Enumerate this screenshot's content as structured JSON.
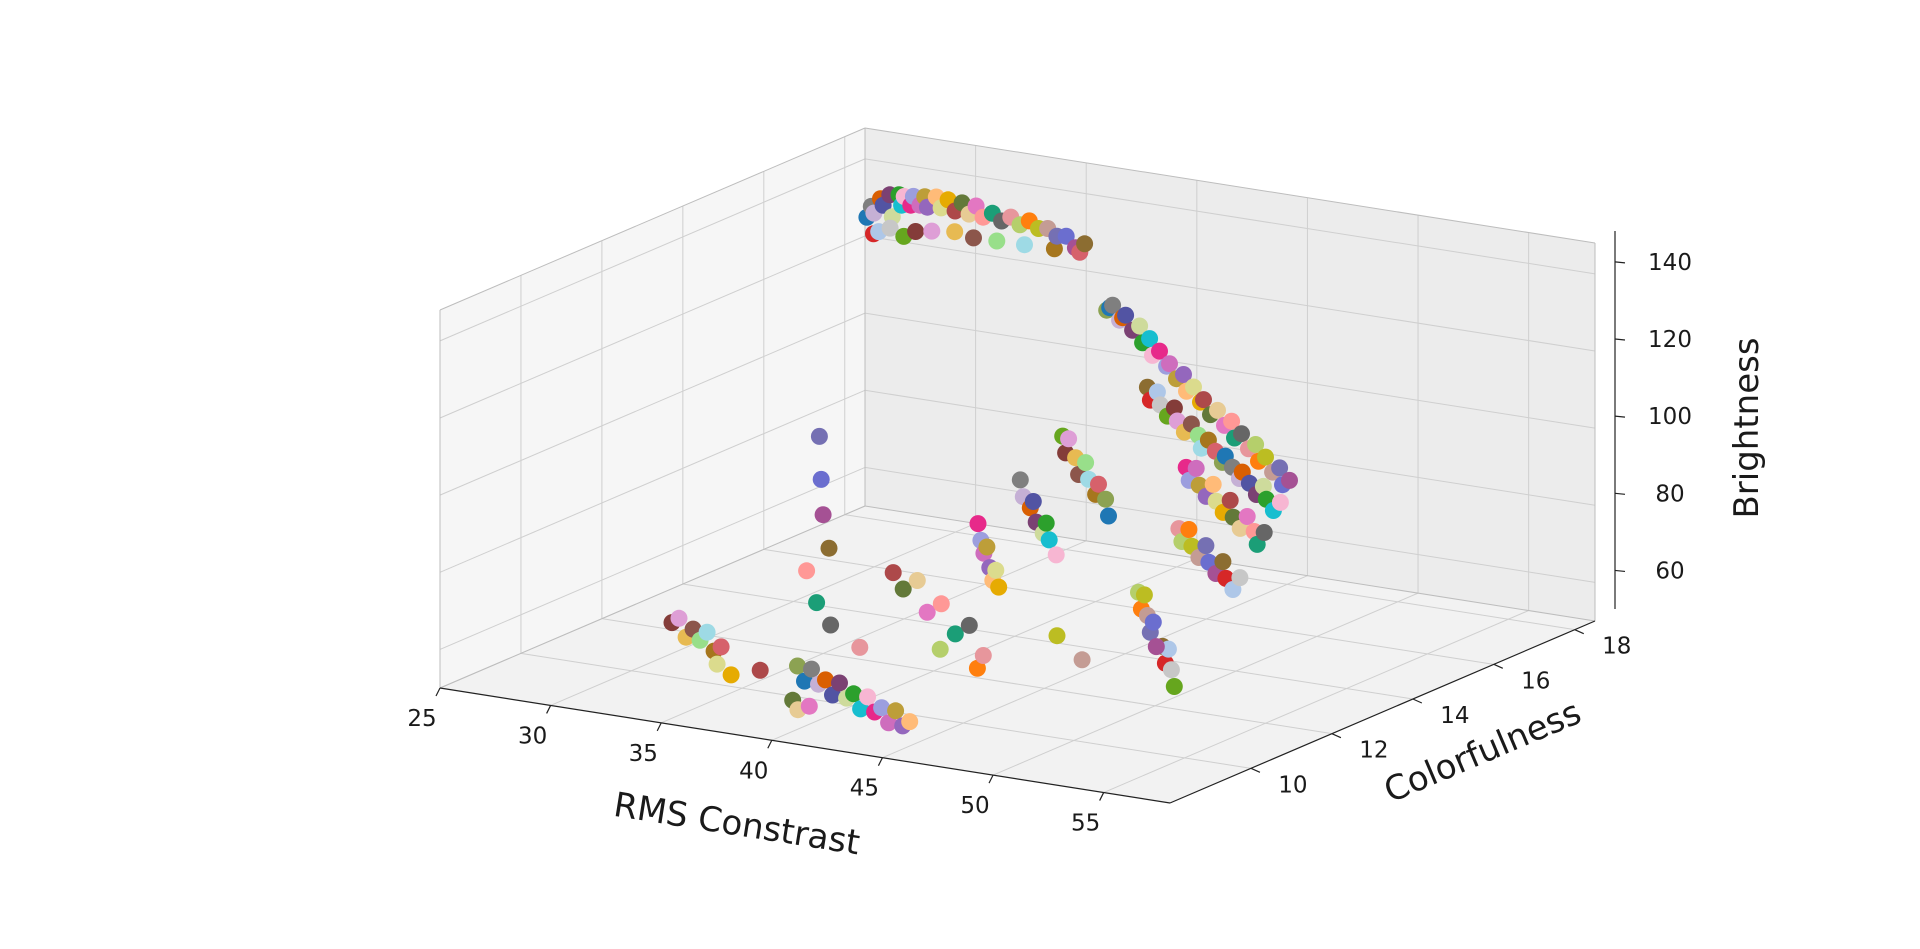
{
  "chart_data": {
    "type": "scatter",
    "projection": "3d",
    "title": "",
    "xlabel": "RMS Constrast",
    "ylabel": "Colorfulness",
    "zlabel": "Brightness",
    "xlim": [
      25,
      58
    ],
    "ylim": [
      8,
      18.5
    ],
    "zlim": [
      50,
      148
    ],
    "xticks": [
      "25",
      "30",
      "35",
      "40",
      "45",
      "50",
      "55"
    ],
    "yticks": [
      "10",
      "12",
      "14",
      "16",
      "18"
    ],
    "zticks": [
      "60",
      "80",
      "100",
      "120",
      "140"
    ],
    "grid": true,
    "legend": "none",
    "palette": [
      "#1f77b4",
      "#ff7f0e",
      "#2ca02c",
      "#d62728",
      "#9467bd",
      "#8c564b",
      "#e377c2",
      "#7f7f7f",
      "#bcbd22",
      "#17becf",
      "#aec7e8",
      "#ffbb78",
      "#98df8a",
      "#ff9896",
      "#c5b0d5",
      "#c49c94",
      "#f7b6d2",
      "#c7c7c7",
      "#dbdb8d",
      "#9edae5",
      "#1b9e77",
      "#d95f02",
      "#7570b3",
      "#e7298a",
      "#66a61e",
      "#e6ab02",
      "#a6761d",
      "#666666",
      "#5254a3",
      "#6b6ecf",
      "#9c9ede",
      "#843c39",
      "#ad494a",
      "#d6616b",
      "#e7969c",
      "#7b4173",
      "#a55194",
      "#ce6dbd",
      "#de9ed6",
      "#637939",
      "#8ca252",
      "#b5cf6b",
      "#cedb9c",
      "#8c6d31",
      "#bd9e39",
      "#e7ba52",
      "#e7cb94"
    ],
    "points": [
      [
        26.0,
        18.0,
        128
      ],
      [
        26.2,
        18.0,
        131
      ],
      [
        26.5,
        17.9,
        130
      ],
      [
        26.8,
        17.9,
        134
      ],
      [
        27.1,
        17.8,
        133
      ],
      [
        27.4,
        17.8,
        136
      ],
      [
        27.7,
        17.7,
        131
      ],
      [
        28.0,
        17.7,
        137
      ],
      [
        28.3,
        17.6,
        135
      ],
      [
        28.6,
        17.5,
        138
      ],
      [
        28.9,
        17.5,
        136
      ],
      [
        29.2,
        17.4,
        139
      ],
      [
        29.5,
        17.4,
        137
      ],
      [
        29.9,
        17.3,
        140
      ],
      [
        30.2,
        17.2,
        138
      ],
      [
        30.6,
        17.2,
        141
      ],
      [
        31.0,
        17.1,
        139
      ],
      [
        31.5,
        17.0,
        142
      ],
      [
        32.0,
        16.9,
        140
      ],
      [
        32.5,
        16.8,
        143
      ],
      [
        33.0,
        16.7,
        141
      ],
      [
        33.5,
        16.6,
        144
      ],
      [
        34.0,
        16.5,
        142
      ],
      [
        34.6,
        16.4,
        144
      ],
      [
        35.2,
        16.3,
        143
      ],
      [
        35.8,
        16.2,
        145
      ],
      [
        36.4,
        16.1,
        144
      ],
      [
        37.0,
        16.0,
        146
      ],
      [
        37.6,
        15.9,
        145
      ],
      [
        38.2,
        15.8,
        146
      ],
      [
        38.8,
        15.7,
        145
      ],
      [
        39.4,
        15.6,
        146
      ],
      [
        40.0,
        15.5,
        144
      ],
      [
        40.6,
        15.4,
        146
      ],
      [
        26.3,
        18.0,
        124
      ],
      [
        26.9,
        17.8,
        126
      ],
      [
        27.6,
        17.7,
        128
      ],
      [
        28.4,
        17.6,
        127
      ],
      [
        29.3,
        17.4,
        130
      ],
      [
        30.4,
        17.2,
        132
      ],
      [
        31.8,
        17.0,
        134
      ],
      [
        33.2,
        16.7,
        135
      ],
      [
        34.8,
        16.4,
        137
      ],
      [
        36.6,
        16.1,
        139
      ],
      [
        38.5,
        15.8,
        141
      ],
      [
        40.2,
        15.5,
        143
      ],
      [
        40.5,
        16.0,
        126
      ],
      [
        41.0,
        15.8,
        128
      ],
      [
        41.5,
        15.6,
        130
      ],
      [
        42.0,
        15.5,
        127
      ],
      [
        42.5,
        15.3,
        129
      ],
      [
        43.0,
        15.1,
        131
      ],
      [
        43.5,
        15.0,
        128
      ],
      [
        44.0,
        14.9,
        130
      ],
      [
        44.5,
        14.7,
        127
      ],
      [
        45.0,
        14.6,
        129
      ],
      [
        45.5,
        14.4,
        126
      ],
      [
        46.0,
        14.3,
        128
      ],
      [
        46.5,
        14.2,
        125
      ],
      [
        47.0,
        14.0,
        127
      ],
      [
        47.5,
        13.9,
        124
      ],
      [
        48.0,
        13.8,
        126
      ],
      [
        48.5,
        13.6,
        123
      ],
      [
        49.0,
        13.5,
        125
      ],
      [
        49.5,
        13.4,
        122
      ],
      [
        50.0,
        13.2,
        124
      ],
      [
        50.5,
        13.1,
        121
      ],
      [
        51.0,
        13.0,
        123
      ],
      [
        51.5,
        12.9,
        120
      ],
      [
        52.0,
        12.8,
        122
      ],
      [
        52.5,
        12.6,
        119
      ],
      [
        53.0,
        12.5,
        121
      ],
      [
        53.5,
        12.4,
        118
      ],
      [
        54.0,
        12.3,
        120
      ],
      [
        54.5,
        12.1,
        117
      ],
      [
        55.0,
        12.0,
        119
      ],
      [
        55.5,
        11.9,
        116
      ],
      [
        56.0,
        11.8,
        118
      ],
      [
        56.5,
        11.6,
        115
      ],
      [
        57.0,
        11.5,
        117
      ],
      [
        46.0,
        14.0,
        120
      ],
      [
        46.5,
        13.8,
        118
      ],
      [
        47.0,
        13.7,
        121
      ],
      [
        47.5,
        13.5,
        119
      ],
      [
        48.0,
        13.4,
        117
      ],
      [
        48.5,
        13.3,
        120
      ],
      [
        49.0,
        13.1,
        118
      ],
      [
        49.5,
        13.0,
        116
      ],
      [
        50.0,
        12.9,
        119
      ],
      [
        50.5,
        12.8,
        117
      ],
      [
        51.0,
        12.6,
        115
      ],
      [
        51.5,
        12.5,
        118
      ],
      [
        52.0,
        12.4,
        116
      ],
      [
        52.5,
        12.3,
        114
      ],
      [
        53.0,
        12.1,
        117
      ],
      [
        53.5,
        12.0,
        115
      ],
      [
        54.0,
        11.9,
        113
      ],
      [
        54.5,
        11.7,
        116
      ],
      [
        55.0,
        11.6,
        114
      ],
      [
        55.5,
        11.5,
        112
      ],
      [
        56.0,
        11.4,
        115
      ],
      [
        56.5,
        11.2,
        113
      ],
      [
        57.0,
        11.1,
        111
      ],
      [
        57.5,
        11.0,
        114
      ],
      [
        50.5,
        12.5,
        110
      ],
      [
        51.0,
        12.3,
        108
      ],
      [
        51.5,
        12.2,
        112
      ],
      [
        52.0,
        12.0,
        109
      ],
      [
        52.5,
        11.9,
        107
      ],
      [
        53.0,
        11.8,
        111
      ],
      [
        53.5,
        11.6,
        108
      ],
      [
        54.0,
        11.5,
        106
      ],
      [
        54.5,
        11.4,
        110
      ],
      [
        55.0,
        11.2,
        107
      ],
      [
        55.5,
        11.1,
        105
      ],
      [
        56.0,
        11.0,
        109
      ],
      [
        56.5,
        10.9,
        106
      ],
      [
        57.0,
        10.7,
        104
      ],
      [
        57.5,
        10.6,
        108
      ],
      [
        52.0,
        11.5,
        100
      ],
      [
        52.5,
        11.3,
        98
      ],
      [
        53.0,
        11.2,
        102
      ],
      [
        53.5,
        11.0,
        99
      ],
      [
        54.0,
        10.9,
        97
      ],
      [
        54.5,
        10.8,
        101
      ],
      [
        55.0,
        10.6,
        98
      ],
      [
        55.5,
        10.5,
        96
      ],
      [
        56.0,
        10.4,
        100
      ],
      [
        56.5,
        10.2,
        97
      ],
      [
        57.0,
        10.1,
        95
      ],
      [
        57.5,
        10.0,
        99
      ],
      [
        44.0,
        13.0,
        110
      ],
      [
        44.5,
        12.8,
        107
      ],
      [
        45.0,
        12.6,
        112
      ],
      [
        45.5,
        12.5,
        108
      ],
      [
        46.0,
        12.3,
        105
      ],
      [
        46.5,
        12.2,
        109
      ],
      [
        47.0,
        12.0,
        106
      ],
      [
        47.5,
        11.9,
        103
      ],
      [
        48.0,
        11.7,
        107
      ],
      [
        48.5,
        11.6,
        104
      ],
      [
        49.0,
        11.4,
        101
      ],
      [
        43.0,
        12.5,
        100
      ],
      [
        43.5,
        12.3,
        97
      ],
      [
        44.0,
        12.2,
        95
      ],
      [
        44.5,
        12.0,
        98
      ],
      [
        45.0,
        11.8,
        94
      ],
      [
        45.5,
        11.7,
        92
      ],
      [
        46.0,
        11.5,
        96
      ],
      [
        46.5,
        11.3,
        93
      ],
      [
        47.0,
        11.2,
        90
      ],
      [
        42.0,
        12.0,
        90
      ],
      [
        42.5,
        11.8,
        87
      ],
      [
        43.0,
        11.6,
        85
      ],
      [
        43.5,
        11.4,
        88
      ],
      [
        44.0,
        11.2,
        84
      ],
      [
        44.5,
        11.0,
        82
      ],
      [
        45.0,
        10.8,
        86
      ],
      [
        45.5,
        10.6,
        83
      ],
      [
        40.0,
        11.0,
        80
      ],
      [
        41.0,
        10.7,
        78
      ],
      [
        42.0,
        10.5,
        82
      ],
      [
        43.0,
        10.2,
        76
      ],
      [
        44.0,
        10.0,
        80
      ],
      [
        45.0,
        9.8,
        74
      ],
      [
        46.0,
        9.6,
        78
      ],
      [
        47.0,
        9.4,
        72
      ],
      [
        52.0,
        10.5,
        88
      ],
      [
        52.5,
        10.3,
        85
      ],
      [
        53.0,
        10.1,
        90
      ],
      [
        53.5,
        9.9,
        86
      ],
      [
        54.0,
        9.7,
        83
      ],
      [
        54.5,
        9.5,
        87
      ],
      [
        55.0,
        9.3,
        82
      ],
      [
        54.0,
        10.0,
        78
      ],
      [
        54.5,
        9.8,
        75
      ],
      [
        55.0,
        9.6,
        80
      ],
      [
        55.5,
        9.4,
        76
      ],
      [
        56.0,
        9.2,
        73
      ],
      [
        30.0,
        11.0,
        58
      ],
      [
        30.5,
        10.9,
        60
      ],
      [
        31.0,
        10.8,
        56
      ],
      [
        31.5,
        10.7,
        59
      ],
      [
        32.0,
        10.6,
        57
      ],
      [
        32.5,
        10.5,
        60
      ],
      [
        33.0,
        10.4,
        56
      ],
      [
        33.5,
        10.3,
        58
      ],
      [
        37.5,
        10.0,
        58
      ],
      [
        38.0,
        9.9,
        55
      ],
      [
        38.5,
        9.8,
        59
      ],
      [
        39.0,
        9.7,
        56
      ],
      [
        39.5,
        9.6,
        58
      ],
      [
        40.0,
        9.5,
        55
      ],
      [
        40.5,
        9.4,
        59
      ],
      [
        41.0,
        9.3,
        56
      ],
      [
        41.5,
        9.2,
        58
      ],
      [
        42.0,
        9.1,
        55
      ],
      [
        42.5,
        9.0,
        59
      ],
      [
        43.0,
        8.9,
        56
      ],
      [
        43.5,
        8.8,
        58
      ],
      [
        44.0,
        8.7,
        55
      ],
      [
        44.5,
        8.6,
        59
      ],
      [
        45.0,
        8.5,
        56
      ],
      [
        45.5,
        8.4,
        58
      ],
      [
        33.5,
        10.2,
        54
      ],
      [
        34.5,
        10.0,
        53
      ],
      [
        36.0,
        9.9,
        56
      ],
      [
        38.2,
        9.5,
        52
      ],
      [
        38.8,
        9.3,
        51
      ],
      [
        39.5,
        9.2,
        53
      ],
      [
        37.0,
        10.5,
        80
      ],
      [
        38.0,
        10.2,
        74
      ],
      [
        39.0,
        10.0,
        70
      ],
      [
        40.5,
        9.9,
        66
      ],
      [
        44.5,
        9.7,
        70
      ],
      [
        46.0,
        9.8,
        66
      ],
      [
        48.5,
        10.4,
        74
      ],
      [
        50.0,
        10.2,
        70
      ],
      [
        33.0,
        13.0,
        100
      ],
      [
        34.0,
        12.5,
        92
      ],
      [
        35.0,
        12.0,
        86
      ],
      [
        36.0,
        11.6,
        80
      ]
    ]
  }
}
